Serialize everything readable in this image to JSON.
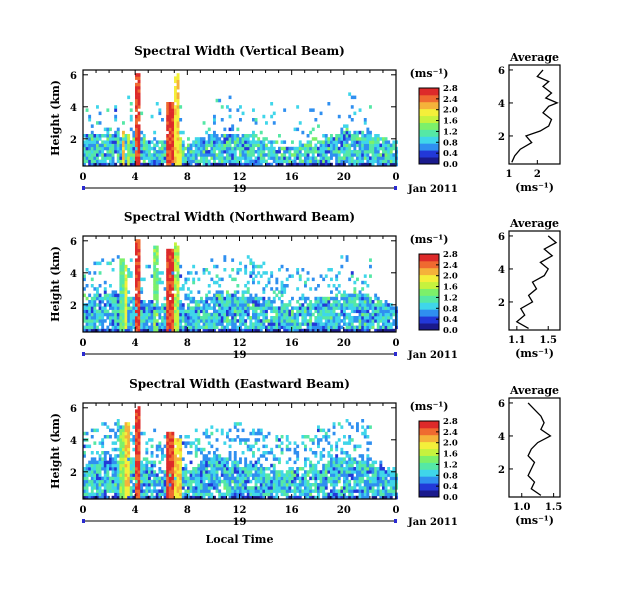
{
  "shared": {
    "height_label": "Height (km)",
    "unit": "(ms⁻¹)",
    "avg_title": "Average",
    "avg_xlabel": "(ms⁻¹)",
    "date_label": "Jan 2011",
    "day_label": "19",
    "xlabel_bottom": "Local Time",
    "x_ticks": [
      "0",
      "4",
      "8",
      "12",
      "16",
      "20",
      "0"
    ],
    "colormap": [
      "#1a1a8c",
      "#2238d8",
      "#2f8ff0",
      "#3fd6ea",
      "#55e8a6",
      "#7cf06a",
      "#c6f23e",
      "#f4ef3a",
      "#f5b23a",
      "#ef6a30",
      "#dd2a2a"
    ]
  },
  "panels": [
    {
      "title": "Spectral Width (Vertical Beam)",
      "y_ticks": [
        "2",
        "4",
        "6"
      ],
      "colorbar_ticks": [
        "0.0",
        "0.4",
        "0.8",
        "1.2",
        "1.6",
        "2.0",
        "2.4",
        "2.8"
      ],
      "avg_x_ticks": [
        "1",
        "2"
      ],
      "avg_y_ticks": [
        "2",
        "4",
        "6"
      ]
    },
    {
      "title": "Spectral Width (Northward Beam)",
      "y_ticks": [
        "2",
        "4",
        "6"
      ],
      "colorbar_ticks": [
        "0.0",
        "0.4",
        "0.8",
        "1.2",
        "1.6",
        "2.0",
        "2.4",
        "2.8"
      ],
      "avg_x_ticks": [
        "1.1",
        "1.5"
      ],
      "avg_y_ticks": [
        "2",
        "4",
        "6"
      ]
    },
    {
      "title": "Spectral Width (Eastward Beam)",
      "y_ticks": [
        "2",
        "4",
        "6"
      ],
      "colorbar_ticks": [
        "0.0",
        "0.4",
        "0.8",
        "1.2",
        "1.6",
        "2.0",
        "2.4",
        "2.8"
      ],
      "avg_x_ticks": [
        "1.0",
        "1.5"
      ],
      "avg_y_ticks": [
        "2",
        "4",
        "6"
      ]
    }
  ],
  "chart_data": [
    {
      "type": "heatmap",
      "title": "Spectral Width (Vertical Beam)",
      "xlabel": "",
      "ylabel": "Height (km)",
      "xlim": [
        0,
        24
      ],
      "ylim": [
        0.3,
        6.3
      ],
      "clim": [
        0,
        2.8
      ],
      "unit": "ms⁻¹",
      "layer_top_km": 2.2,
      "base_value": 0.9,
      "columns": [
        {
          "x0": 2.8,
          "x1": 3.0,
          "top": 2.6,
          "value": 2.3
        },
        {
          "x0": 3.2,
          "x1": 3.4,
          "top": 2.4,
          "value": 1.8
        },
        {
          "x0": 3.8,
          "x1": 4.2,
          "top": 6.2,
          "value": 2.8
        },
        {
          "x0": 6.2,
          "x1": 6.8,
          "top": 4.4,
          "value": 2.8
        },
        {
          "x0": 6.8,
          "x1": 7.2,
          "top": 6.1,
          "value": 2.2
        },
        {
          "x0": 7.2,
          "x1": 7.5,
          "top": 2.2,
          "value": 2.0
        }
      ],
      "average": {
        "xlim": [
          1.0,
          2.8
        ],
        "ylim": [
          0.3,
          6.3
        ],
        "height": [
          0.4,
          0.8,
          1.2,
          1.6,
          2.0,
          2.3,
          2.6,
          3.0,
          3.4,
          3.8,
          4.0,
          4.3,
          4.6,
          5.0,
          5.3,
          5.6,
          6.0
        ],
        "value": [
          1.1,
          1.2,
          1.4,
          1.8,
          1.6,
          2.1,
          2.4,
          2.5,
          2.2,
          2.4,
          2.7,
          2.3,
          2.5,
          2.2,
          2.4,
          2.0,
          2.2
        ]
      }
    },
    {
      "type": "heatmap",
      "title": "Spectral Width (Northward Beam)",
      "xlabel": "",
      "ylabel": "Height (km)",
      "xlim": [
        0,
        24
      ],
      "ylim": [
        0.3,
        6.3
      ],
      "clim": [
        0,
        2.8
      ],
      "unit": "ms⁻¹",
      "layer_top_km": 2.5,
      "base_value": 0.85,
      "columns": [
        {
          "x0": 2.6,
          "x1": 3.0,
          "top": 5.0,
          "value": 1.4
        },
        {
          "x0": 3.0,
          "x1": 3.3,
          "top": 4.6,
          "value": 2.0
        },
        {
          "x0": 3.8,
          "x1": 4.3,
          "top": 6.2,
          "value": 2.8
        },
        {
          "x0": 5.2,
          "x1": 5.6,
          "top": 5.8,
          "value": 1.6
        },
        {
          "x0": 6.2,
          "x1": 6.8,
          "top": 5.7,
          "value": 2.8
        },
        {
          "x0": 6.8,
          "x1": 7.3,
          "top": 5.9,
          "value": 1.8
        }
      ],
      "average": {
        "xlim": [
          1.0,
          1.65
        ],
        "ylim": [
          0.3,
          6.3
        ],
        "height": [
          0.4,
          0.8,
          1.2,
          1.6,
          2.0,
          2.4,
          2.8,
          3.2,
          3.6,
          4.0,
          4.4,
          4.8,
          5.2,
          5.6,
          6.0
        ],
        "value": [
          1.25,
          1.1,
          1.2,
          1.15,
          1.3,
          1.25,
          1.35,
          1.3,
          1.45,
          1.5,
          1.4,
          1.55,
          1.45,
          1.6,
          1.5
        ]
      }
    },
    {
      "type": "heatmap",
      "title": "Spectral Width (Eastward Beam)",
      "xlabel": "Local Time",
      "ylabel": "Height (km)",
      "xlim": [
        0,
        24
      ],
      "ylim": [
        0.3,
        6.3
      ],
      "clim": [
        0,
        2.8
      ],
      "unit": "ms⁻¹",
      "layer_top_km": 2.6,
      "base_value": 0.85,
      "columns": [
        {
          "x0": 2.6,
          "x1": 3.0,
          "top": 4.8,
          "value": 1.6
        },
        {
          "x0": 3.0,
          "x1": 3.4,
          "top": 5.2,
          "value": 2.2
        },
        {
          "x0": 3.8,
          "x1": 4.3,
          "top": 6.1,
          "value": 2.8
        },
        {
          "x0": 6.2,
          "x1": 6.8,
          "top": 4.6,
          "value": 2.8
        },
        {
          "x0": 6.8,
          "x1": 7.4,
          "top": 4.2,
          "value": 2.2
        }
      ],
      "average": {
        "xlim": [
          0.8,
          1.6
        ],
        "ylim": [
          0.3,
          6.3
        ],
        "height": [
          0.4,
          0.8,
          1.2,
          1.6,
          2.0,
          2.4,
          2.8,
          3.2,
          3.6,
          4.0,
          4.4,
          4.8,
          5.2,
          5.6,
          6.0
        ],
        "value": [
          1.3,
          1.15,
          1.2,
          1.1,
          1.15,
          1.2,
          1.1,
          1.15,
          1.25,
          1.45,
          1.3,
          1.35,
          1.3,
          1.2,
          1.1
        ]
      }
    }
  ]
}
